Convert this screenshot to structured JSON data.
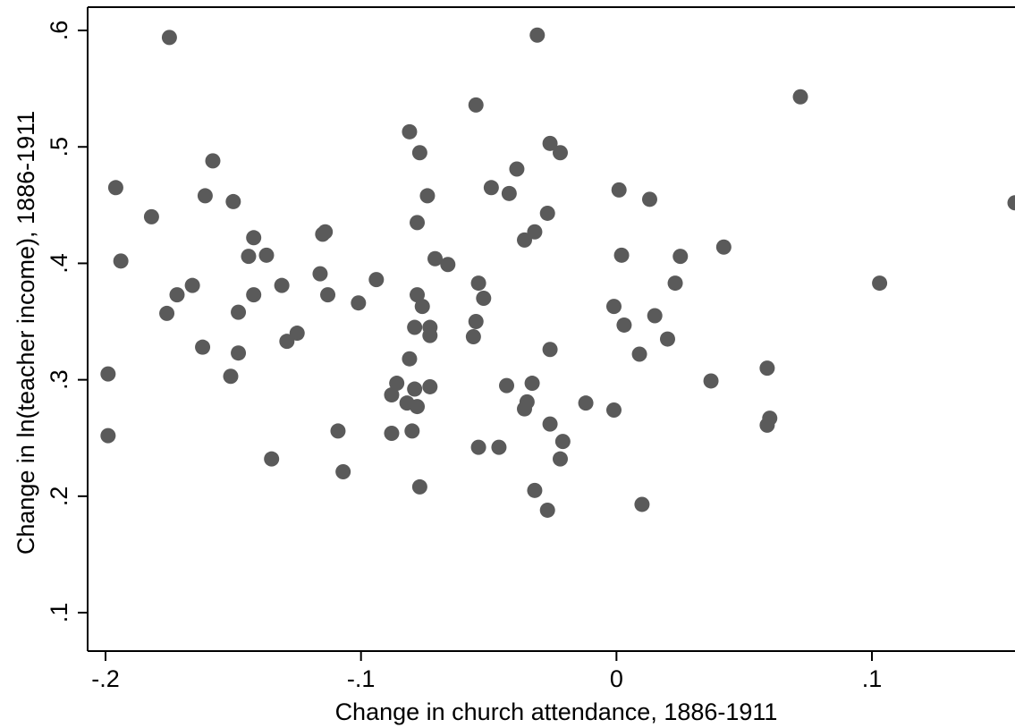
{
  "chart_data": {
    "type": "scatter",
    "xlabel": "Change in church attendance, 1886-1911",
    "ylabel": "Change in ln(teacher income), 1886-1911",
    "xlim": [
      -0.207,
      0.156
    ],
    "ylim": [
      0.067,
      0.62
    ],
    "x_ticks": [
      {
        "value": -0.2,
        "label": "-.2"
      },
      {
        "value": -0.1,
        "label": "-.1"
      },
      {
        "value": 0.0,
        "label": "0"
      },
      {
        "value": 0.1,
        "label": ".1"
      }
    ],
    "y_ticks": [
      {
        "value": 0.1,
        "label": ".1"
      },
      {
        "value": 0.2,
        "label": ".2"
      },
      {
        "value": 0.3,
        "label": ".3"
      },
      {
        "value": 0.4,
        "label": ".4"
      },
      {
        "value": 0.5,
        "label": ".5"
      },
      {
        "value": 0.6,
        "label": ".6"
      }
    ],
    "grid": false,
    "marker_color": "#5a5a5a",
    "points": [
      {
        "x": -0.175,
        "y": 0.594
      },
      {
        "x": -0.031,
        "y": 0.596
      },
      {
        "x": 0.072,
        "y": 0.543
      },
      {
        "x": -0.055,
        "y": 0.536
      },
      {
        "x": -0.081,
        "y": 0.513
      },
      {
        "x": -0.026,
        "y": 0.503
      },
      {
        "x": -0.022,
        "y": 0.495
      },
      {
        "x": -0.077,
        "y": 0.495
      },
      {
        "x": -0.158,
        "y": 0.488
      },
      {
        "x": -0.039,
        "y": 0.481
      },
      {
        "x": -0.196,
        "y": 0.465
      },
      {
        "x": -0.049,
        "y": 0.465
      },
      {
        "x": 0.001,
        "y": 0.463
      },
      {
        "x": -0.042,
        "y": 0.46
      },
      {
        "x": -0.074,
        "y": 0.458
      },
      {
        "x": -0.161,
        "y": 0.458
      },
      {
        "x": 0.013,
        "y": 0.455
      },
      {
        "x": -0.15,
        "y": 0.453
      },
      {
        "x": 0.156,
        "y": 0.452
      },
      {
        "x": -0.027,
        "y": 0.443
      },
      {
        "x": -0.182,
        "y": 0.44
      },
      {
        "x": -0.078,
        "y": 0.435
      },
      {
        "x": -0.032,
        "y": 0.427
      },
      {
        "x": -0.114,
        "y": 0.427
      },
      {
        "x": -0.115,
        "y": 0.425
      },
      {
        "x": -0.142,
        "y": 0.422
      },
      {
        "x": -0.036,
        "y": 0.42
      },
      {
        "x": 0.042,
        "y": 0.414
      },
      {
        "x": -0.137,
        "y": 0.407
      },
      {
        "x": 0.002,
        "y": 0.407
      },
      {
        "x": -0.144,
        "y": 0.406
      },
      {
        "x": 0.025,
        "y": 0.406
      },
      {
        "x": -0.071,
        "y": 0.404
      },
      {
        "x": -0.194,
        "y": 0.402
      },
      {
        "x": -0.066,
        "y": 0.399
      },
      {
        "x": -0.116,
        "y": 0.391
      },
      {
        "x": -0.094,
        "y": 0.386
      },
      {
        "x": 0.103,
        "y": 0.383
      },
      {
        "x": -0.054,
        "y": 0.383
      },
      {
        "x": 0.023,
        "y": 0.383
      },
      {
        "x": -0.166,
        "y": 0.381
      },
      {
        "x": -0.131,
        "y": 0.381
      },
      {
        "x": -0.172,
        "y": 0.373
      },
      {
        "x": -0.142,
        "y": 0.373
      },
      {
        "x": -0.113,
        "y": 0.373
      },
      {
        "x": -0.078,
        "y": 0.373
      },
      {
        "x": -0.052,
        "y": 0.37
      },
      {
        "x": -0.101,
        "y": 0.366
      },
      {
        "x": -0.076,
        "y": 0.363
      },
      {
        "x": -0.001,
        "y": 0.363
      },
      {
        "x": -0.176,
        "y": 0.357
      },
      {
        "x": -0.148,
        "y": 0.358
      },
      {
        "x": 0.015,
        "y": 0.355
      },
      {
        "x": -0.055,
        "y": 0.35
      },
      {
        "x": 0.003,
        "y": 0.347
      },
      {
        "x": -0.079,
        "y": 0.345
      },
      {
        "x": -0.073,
        "y": 0.345
      },
      {
        "x": -0.073,
        "y": 0.338
      },
      {
        "x": -0.125,
        "y": 0.34
      },
      {
        "x": -0.056,
        "y": 0.337
      },
      {
        "x": 0.02,
        "y": 0.335
      },
      {
        "x": -0.129,
        "y": 0.333
      },
      {
        "x": -0.162,
        "y": 0.328
      },
      {
        "x": -0.026,
        "y": 0.326
      },
      {
        "x": -0.148,
        "y": 0.323
      },
      {
        "x": 0.009,
        "y": 0.322
      },
      {
        "x": -0.081,
        "y": 0.318
      },
      {
        "x": 0.059,
        "y": 0.31
      },
      {
        "x": -0.199,
        "y": 0.305
      },
      {
        "x": -0.151,
        "y": 0.303
      },
      {
        "x": 0.037,
        "y": 0.299
      },
      {
        "x": -0.086,
        "y": 0.297
      },
      {
        "x": -0.033,
        "y": 0.297
      },
      {
        "x": -0.043,
        "y": 0.295
      },
      {
        "x": -0.073,
        "y": 0.294
      },
      {
        "x": -0.079,
        "y": 0.292
      },
      {
        "x": -0.088,
        "y": 0.287
      },
      {
        "x": -0.035,
        "y": 0.281
      },
      {
        "x": -0.082,
        "y": 0.28
      },
      {
        "x": -0.012,
        "y": 0.28
      },
      {
        "x": -0.078,
        "y": 0.277
      },
      {
        "x": -0.036,
        "y": 0.275
      },
      {
        "x": -0.001,
        "y": 0.274
      },
      {
        "x": 0.06,
        "y": 0.267
      },
      {
        "x": -0.026,
        "y": 0.262
      },
      {
        "x": 0.059,
        "y": 0.261
      },
      {
        "x": -0.109,
        "y": 0.256
      },
      {
        "x": -0.08,
        "y": 0.256
      },
      {
        "x": -0.088,
        "y": 0.254
      },
      {
        "x": -0.199,
        "y": 0.252
      },
      {
        "x": -0.021,
        "y": 0.247
      },
      {
        "x": -0.054,
        "y": 0.242
      },
      {
        "x": -0.046,
        "y": 0.242
      },
      {
        "x": -0.135,
        "y": 0.232
      },
      {
        "x": -0.022,
        "y": 0.232
      },
      {
        "x": -0.107,
        "y": 0.221
      },
      {
        "x": -0.077,
        "y": 0.208
      },
      {
        "x": -0.032,
        "y": 0.205
      },
      {
        "x": 0.01,
        "y": 0.193
      },
      {
        "x": -0.027,
        "y": 0.188
      }
    ]
  }
}
